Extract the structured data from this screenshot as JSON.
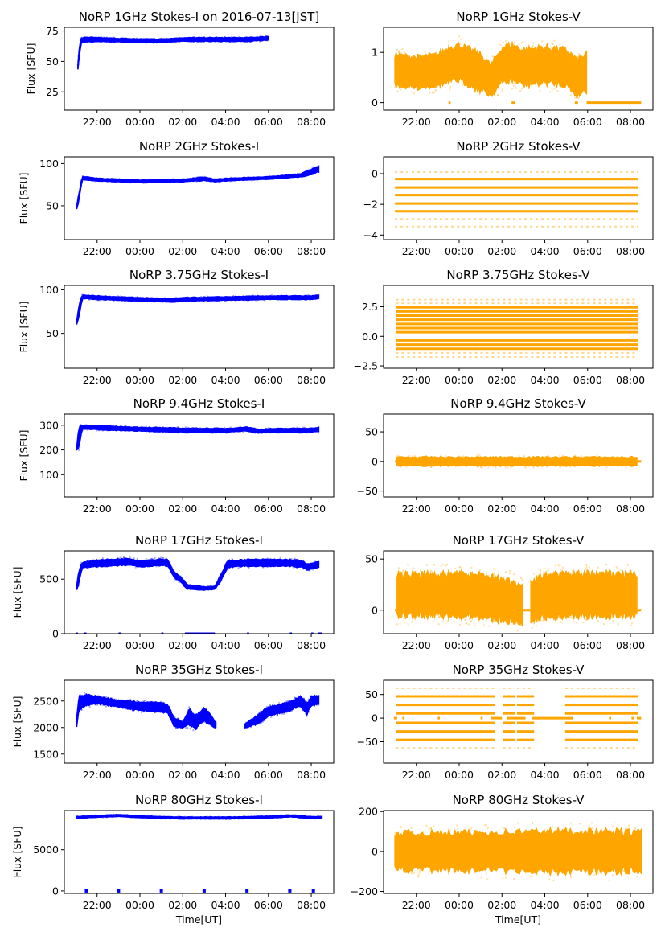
{
  "colors": {
    "stokes_i": "#0000ff",
    "stokes_v": "#ffa500",
    "axis": "#000000"
  },
  "chart_data": [
    {
      "type": "scatter",
      "title": "NoRP 1GHz Stokes-I on 2016-07-13[JST]",
      "ylabel": "Flux [SFU]",
      "xlabel": "",
      "series": "stokes_i",
      "xlim": [
        -3.53,
        9.05
      ],
      "ylim": [
        10,
        78
      ],
      "yticks": [
        25,
        50,
        75
      ],
      "ytick_labels": [
        "25",
        "50",
        "75"
      ],
      "xticks": [
        -2,
        0,
        2,
        4,
        6,
        8
      ],
      "xtick_labels": [
        "22:00",
        "00:00",
        "02:00",
        "04:00",
        "06:00",
        "08:00"
      ],
      "band": {
        "x": [
          -2.9,
          -2.85,
          -2.75,
          -2.5,
          -2,
          0,
          1,
          2,
          3,
          4,
          5,
          6
        ],
        "center": [
          45,
          55,
          67,
          68,
          68,
          67,
          67,
          68,
          68,
          68,
          68,
          69
        ],
        "spread": [
          2,
          4,
          2,
          2,
          1.5,
          1.5,
          1.5,
          1.5,
          1.5,
          1.5,
          1.5,
          1.5
        ]
      },
      "xend": 6.0
    },
    {
      "type": "scatter",
      "title": "NoRP 1GHz Stokes-V",
      "ylabel": "",
      "xlabel": "",
      "series": "stokes_v",
      "xlim": [
        -3.53,
        9.05
      ],
      "ylim": [
        -0.15,
        1.5
      ],
      "yticks": [
        0,
        1
      ],
      "ytick_labels": [
        "0",
        "1"
      ],
      "xticks": [
        -2,
        0,
        2,
        4,
        6,
        8
      ],
      "xtick_labels": [
        "22:00",
        "00:00",
        "02:00",
        "04:00",
        "06:00",
        "08:00"
      ],
      "band": {
        "x": [
          -3,
          -2,
          -1,
          -0.5,
          0,
          1,
          1.5,
          2,
          2.5,
          3,
          4,
          5,
          5.5,
          5.9
        ],
        "center": [
          0.65,
          0.6,
          0.65,
          0.75,
          0.8,
          0.6,
          0.45,
          0.75,
          0.8,
          0.7,
          0.75,
          0.7,
          0.5,
          0.6
        ],
        "spread": [
          0.3,
          0.3,
          0.3,
          0.35,
          0.35,
          0.35,
          0.3,
          0.35,
          0.35,
          0.35,
          0.35,
          0.35,
          0.35,
          0.35
        ]
      },
      "xend": 5.95,
      "zero_segments": [
        [
          -0.5,
          -0.4
        ],
        [
          2.45,
          2.6
        ],
        [
          5.4,
          5.55
        ],
        [
          5.95,
          8.5
        ]
      ]
    },
    {
      "type": "scatter",
      "title": "NoRP 2GHz Stokes-I",
      "ylabel": "Flux [SFU]",
      "xlabel": "",
      "series": "stokes_i",
      "xlim": [
        -3.53,
        9.05
      ],
      "ylim": [
        10,
        108
      ],
      "yticks": [
        50,
        100
      ],
      "ytick_labels": [
        "50",
        "100"
      ],
      "xticks": [
        -2,
        0,
        2,
        4,
        6,
        8
      ],
      "xtick_labels": [
        "22:00",
        "00:00",
        "02:00",
        "04:00",
        "06:00",
        "08:00"
      ],
      "band": {
        "x": [
          -2.95,
          -2.85,
          -2.7,
          -2,
          0,
          2,
          3,
          3.5,
          4,
          6,
          7,
          7.5,
          8,
          8.3
        ],
        "center": [
          48,
          60,
          83,
          81,
          79,
          80,
          82,
          80,
          81,
          83,
          85,
          86,
          90,
          93
        ],
        "spread": [
          2,
          4,
          2,
          1.5,
          1.5,
          1.5,
          2,
          1.5,
          1.5,
          1.5,
          1.5,
          2,
          3,
          3
        ]
      },
      "xend": 8.35
    },
    {
      "type": "scatter",
      "title": "NoRP 2GHz Stokes-V",
      "ylabel": "",
      "xlabel": "",
      "series": "stokes_v",
      "xlim": [
        -3.53,
        9.05
      ],
      "ylim": [
        -4.3,
        1.1
      ],
      "yticks": [
        -4,
        -2,
        0
      ],
      "ytick_labels": [
        "−4",
        "−2",
        "0"
      ],
      "xticks": [
        -2,
        0,
        2,
        4,
        6,
        8
      ],
      "xtick_labels": [
        "22:00",
        "00:00",
        "02:00",
        "04:00",
        "06:00",
        "08:00"
      ],
      "levels": [
        -0.35,
        -0.9,
        -1.4,
        -1.95,
        -2.45
      ],
      "sparse_levels": [
        0.1,
        -2.95,
        -3.45
      ],
      "xstart": -3.0,
      "xend": 8.35
    },
    {
      "type": "scatter",
      "title": "NoRP 3.75GHz Stokes-I",
      "ylabel": "Flux [SFU]",
      "xlabel": "",
      "series": "stokes_i",
      "xlim": [
        -3.53,
        9.05
      ],
      "ylim": [
        10,
        105
      ],
      "yticks": [
        50,
        100
      ],
      "ytick_labels": [
        "50",
        "100"
      ],
      "xticks": [
        -2,
        0,
        2,
        4,
        6,
        8
      ],
      "xtick_labels": [
        "22:00",
        "00:00",
        "02:00",
        "04:00",
        "06:00",
        "08:00"
      ],
      "band": {
        "x": [
          -2.95,
          -2.85,
          -2.7,
          -2,
          0,
          1.5,
          2,
          4,
          6,
          8,
          8.35
        ],
        "center": [
          62,
          75,
          92,
          91,
          89,
          88,
          89,
          90,
          91,
          91,
          92
        ],
        "spread": [
          2,
          8,
          2,
          2,
          2,
          2,
          2,
          2,
          2,
          2,
          2
        ]
      },
      "xend": 8.35
    },
    {
      "type": "scatter",
      "title": "NoRP 3.75GHz Stokes-V",
      "ylabel": "",
      "xlabel": "",
      "series": "stokes_v",
      "xlim": [
        -3.53,
        9.05
      ],
      "ylim": [
        -2.7,
        4.3
      ],
      "yticks": [
        -2.5,
        0,
        2.5
      ],
      "ytick_labels": [
        "−2.5",
        "0.0",
        "2.5"
      ],
      "xticks": [
        -2,
        0,
        2,
        4,
        6,
        8
      ],
      "xtick_labels": [
        "22:00",
        "00:00",
        "02:00",
        "04:00",
        "06:00",
        "08:00"
      ],
      "levels": [
        2.45,
        2.1,
        1.75,
        1.4,
        1.05,
        0.7,
        0.35,
        -0.35,
        -0.7,
        -1.05
      ],
      "sparse_levels": [
        3.1,
        2.8,
        -1.4,
        -1.75
      ],
      "xstart": -2.95,
      "xend": 8.35
    },
    {
      "type": "scatter",
      "title": "NoRP 9.4GHz Stokes-I",
      "ylabel": "Flux [SFU]",
      "xlabel": "",
      "series": "stokes_i",
      "xlim": [
        -3.53,
        9.05
      ],
      "ylim": [
        10,
        345
      ],
      "yticks": [
        100,
        200,
        300
      ],
      "ytick_labels": [
        "100",
        "200",
        "300"
      ],
      "xticks": [
        -2,
        0,
        2,
        4,
        6,
        8
      ],
      "xtick_labels": [
        "22:00",
        "00:00",
        "02:00",
        "04:00",
        "06:00",
        "08:00"
      ],
      "band": {
        "x": [
          -2.95,
          -2.85,
          -2.7,
          -2,
          0,
          2,
          4,
          5,
          5.5,
          6,
          8,
          8.35
        ],
        "center": [
          205,
          250,
          293,
          290,
          284,
          280,
          279,
          285,
          276,
          278,
          280,
          283
        ],
        "spread": [
          5,
          40,
          8,
          8,
          8,
          8,
          8,
          8,
          8,
          8,
          8,
          8
        ]
      },
      "xend": 8.35
    },
    {
      "type": "scatter",
      "title": "NoRP 9.4GHz Stokes-V",
      "ylabel": "",
      "xlabel": "",
      "series": "stokes_v",
      "xlim": [
        -3.53,
        9.05
      ],
      "ylim": [
        -60,
        80
      ],
      "yticks": [
        -50,
        0,
        50
      ],
      "ytick_labels": [
        "−50",
        "0",
        "50"
      ],
      "xticks": [
        -2,
        0,
        2,
        4,
        6,
        8
      ],
      "xtick_labels": [
        "22:00",
        "00:00",
        "02:00",
        "04:00",
        "06:00",
        "08:00"
      ],
      "band": {
        "x": [
          -2.9,
          8.3
        ],
        "center": [
          0,
          0
        ],
        "spread": [
          7,
          7
        ]
      },
      "xend": 8.3,
      "zero_segments": [
        [
          -3.0,
          8.5
        ]
      ]
    },
    {
      "type": "scatter",
      "title": "NoRP 17GHz Stokes-I",
      "ylabel": "Flux [SFU]",
      "xlabel": "",
      "series": "stokes_i",
      "xlim": [
        -3.53,
        9.05
      ],
      "ylim": [
        0,
        760
      ],
      "yticks": [
        0,
        500
      ],
      "ytick_labels": [
        "0",
        "500"
      ],
      "xticks": [
        -2,
        0,
        2,
        4,
        6,
        8
      ],
      "xtick_labels": [
        "22:00",
        "00:00",
        "02:00",
        "04:00",
        "06:00",
        "08:00"
      ],
      "band": {
        "x": [
          -2.95,
          -2.85,
          -2.7,
          -2,
          -0.5,
          0,
          1,
          1.3,
          1.6,
          1.9,
          2.2,
          3,
          3.5,
          3.8,
          4.1,
          5,
          7,
          7.6,
          7.8,
          8.35
        ],
        "center": [
          420,
          520,
          630,
          645,
          660,
          640,
          655,
          650,
          540,
          500,
          430,
          415,
          420,
          520,
          640,
          650,
          650,
          640,
          610,
          635
        ],
        "spread": [
          15,
          60,
          25,
          30,
          30,
          30,
          30,
          30,
          25,
          25,
          20,
          15,
          15,
          30,
          30,
          30,
          30,
          30,
          25,
          25
        ]
      },
      "xend": 8.35,
      "zero_segments": [
        [
          -3.0,
          -2.9
        ],
        [
          -2.6,
          -2.5
        ],
        [
          -1.0,
          -0.9
        ],
        [
          1.0,
          1.1
        ],
        [
          2.1,
          3.5
        ],
        [
          5.0,
          5.1
        ],
        [
          7.0,
          7.1
        ],
        [
          8.0,
          8.1
        ],
        [
          8.3,
          8.5
        ]
      ]
    },
    {
      "type": "scatter",
      "title": "NoRP 17GHz Stokes-V",
      "ylabel": "",
      "xlabel": "",
      "series": "stokes_v",
      "xlim": [
        -3.53,
        9.05
      ],
      "ylim": [
        -23,
        58
      ],
      "yticks": [
        0,
        50
      ],
      "ytick_labels": [
        "0",
        "50"
      ],
      "xticks": [
        -2,
        0,
        2,
        4,
        6,
        8
      ],
      "xtick_labels": [
        "22:00",
        "00:00",
        "02:00",
        "04:00",
        "06:00",
        "08:00"
      ],
      "band": {
        "x": [
          -2.9,
          0,
          1,
          2,
          2.5,
          2.9,
          3.4,
          3.8,
          5,
          8.3
        ],
        "center": [
          15,
          15,
          14,
          10,
          8,
          5,
          8,
          13,
          15,
          15
        ],
        "spread": [
          20,
          20,
          20,
          20,
          20,
          18,
          18,
          20,
          20,
          20
        ]
      },
      "gap": [
        2.95,
        3.35
      ],
      "xend": 8.3,
      "zero_segments": [
        [
          -3.0,
          8.5
        ]
      ]
    },
    {
      "type": "scatter",
      "title": "NoRP 35GHz Stokes-I",
      "ylabel": "Flux [SFU]",
      "xlabel": "",
      "series": "stokes_i",
      "xlim": [
        -3.53,
        9.05
      ],
      "ylim": [
        1330,
        2890
      ],
      "yticks": [
        1500,
        2000,
        2500
      ],
      "ytick_labels": [
        "1500",
        "2000",
        "2500"
      ],
      "xticks": [
        -2,
        0,
        2,
        4,
        6,
        8
      ],
      "xtick_labels": [
        "22:00",
        "00:00",
        "02:00",
        "04:00",
        "06:00",
        "08:00"
      ],
      "band": {
        "x": [
          -2.95,
          -2.85,
          -2.5,
          -2,
          -1,
          0,
          1,
          1.3,
          1.6,
          2,
          2.3,
          2.6,
          3,
          3.3,
          3.5
        ],
        "center": [
          2100,
          2450,
          2520,
          2520,
          2450,
          2400,
          2380,
          2350,
          2100,
          2050,
          2200,
          2100,
          2250,
          2150,
          2050
        ],
        "spread": [
          80,
          120,
          100,
          70,
          60,
          80,
          80,
          80,
          80,
          50,
          150,
          120,
          120,
          100,
          50
        ]
      },
      "xend": 3.55,
      "band2": {
        "x": [
          4.9,
          5.5,
          6,
          7,
          7.5,
          7.8,
          8,
          8.35
        ],
        "center": [
          2030,
          2150,
          2300,
          2400,
          2500,
          2350,
          2500,
          2520
        ],
        "spread": [
          30,
          80,
          80,
          80,
          80,
          100,
          80,
          80
        ]
      },
      "xend2": 8.35
    },
    {
      "type": "scatter",
      "title": "NoRP 35GHz Stokes-V",
      "ylabel": "",
      "xlabel": "",
      "series": "stokes_v",
      "xlim": [
        -3.53,
        9.05
      ],
      "ylim": [
        -95,
        80
      ],
      "yticks": [
        -50,
        0,
        50
      ],
      "ytick_labels": [
        "−50",
        "0",
        "50"
      ],
      "xticks": [
        -2,
        0,
        2,
        4,
        6,
        8
      ],
      "xtick_labels": [
        "22:00",
        "00:00",
        "02:00",
        "04:00",
        "06:00",
        "08:00"
      ],
      "levels": [
        46,
        28,
        10,
        -10,
        -28,
        -46
      ],
      "sparse_levels": [
        63,
        -63
      ],
      "segments": [
        [
          -2.95,
          1.65
        ],
        [
          2.05,
          2.6
        ],
        [
          2.7,
          3.5
        ],
        [
          4.95,
          8.35
        ]
      ],
      "zero_segments": [
        [
          -3.05,
          -2.9
        ],
        [
          -2.65,
          -2.55
        ],
        [
          -1.0,
          -0.9
        ],
        [
          1.0,
          1.1
        ],
        [
          1.5,
          2.0
        ],
        [
          2.25,
          3.1
        ],
        [
          3.4,
          5.3
        ],
        [
          7.0,
          7.1
        ],
        [
          8.05,
          8.15
        ],
        [
          8.3,
          8.5
        ]
      ]
    },
    {
      "type": "scatter",
      "title": "NoRP 80GHz Stokes-I",
      "ylabel": "Flux [SFU]",
      "xlabel": "Time[UT]",
      "series": "stokes_i",
      "xlim": [
        -3.53,
        9.05
      ],
      "ylim": [
        -300,
        9750
      ],
      "yticks": [
        0,
        5000
      ],
      "ytick_labels": [
        "0",
        "5000"
      ],
      "xticks": [
        -2,
        0,
        2,
        4,
        6,
        8
      ],
      "xtick_labels": [
        "22:00",
        "00:00",
        "02:00",
        "04:00",
        "06:00",
        "08:00"
      ],
      "band": {
        "x": [
          -2.95,
          -2,
          -1,
          0,
          1,
          2,
          4,
          6,
          7,
          7.5,
          8,
          8.5
        ],
        "center": [
          8900,
          9050,
          9150,
          9000,
          8900,
          8850,
          8850,
          8950,
          9100,
          9000,
          8900,
          8900
        ],
        "spread": [
          120,
          120,
          120,
          120,
          120,
          120,
          120,
          120,
          120,
          120,
          120,
          120
        ]
      },
      "xend": 8.5,
      "zero_points": [
        -2.5,
        -1.0,
        1.0,
        3.0,
        5.0,
        7.0,
        8.1
      ]
    },
    {
      "type": "scatter",
      "title": "NoRP 80GHz Stokes-V",
      "ylabel": "",
      "xlabel": "Time[UT]",
      "series": "stokes_v",
      "xlim": [
        -3.53,
        9.05
      ],
      "ylim": [
        -210,
        205
      ],
      "yticks": [
        -200,
        0,
        200
      ],
      "ytick_labels": [
        "−200",
        "0",
        "200"
      ],
      "xticks": [
        -2,
        0,
        2,
        4,
        6,
        8
      ],
      "xtick_labels": [
        "22:00",
        "00:00",
        "02:00",
        "04:00",
        "06:00",
        "08:00"
      ],
      "band": {
        "x": [
          -3,
          0,
          2,
          4,
          6,
          8.5
        ],
        "center": [
          0,
          0,
          0,
          0,
          0,
          0
        ],
        "spread": [
          90,
          90,
          95,
          100,
          100,
          95
        ]
      },
      "xend": 8.5
    }
  ]
}
